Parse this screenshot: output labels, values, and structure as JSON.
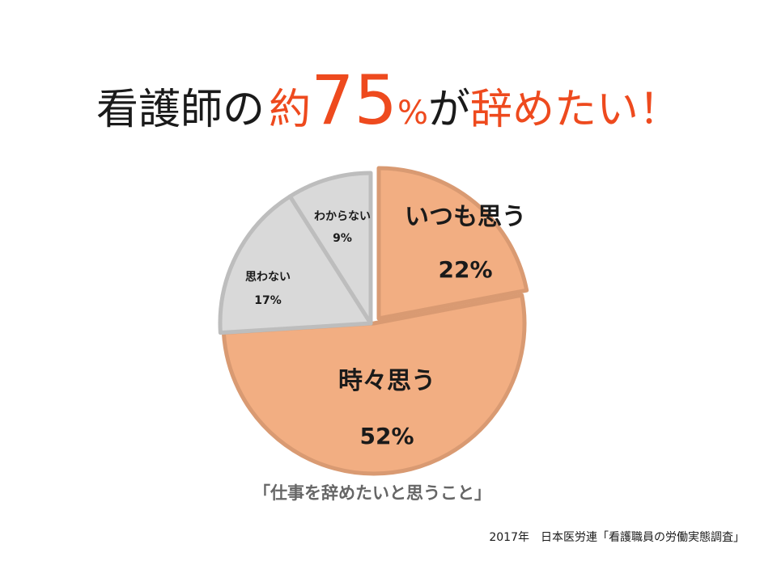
{
  "headline": {
    "part1": "看護師の",
    "part2": "約",
    "part3": "75",
    "part4": "%",
    "part5": "が",
    "part6": "辞めたい！"
  },
  "colors": {
    "accent": "#ee4a1e",
    "orange_fill": "#f2ae82",
    "orange_stroke": "#d99a72",
    "gray_fill": "#d9d9d9",
    "gray_stroke": "#bdbdbd"
  },
  "chart_data": {
    "type": "pie",
    "title": "「仕事を辞めたいと思うこと」",
    "slices": [
      {
        "label": "いつも思う",
        "value": 22,
        "value_label": "22%"
      },
      {
        "label": "時々思う",
        "value": 52,
        "value_label": "52%"
      },
      {
        "label": "思わない",
        "value": 17,
        "value_label": "17%"
      },
      {
        "label": "わからない",
        "value": 9,
        "value_label": "9%"
      }
    ]
  },
  "source": "2017年　日本医労連「看護職員の労働実態調査」"
}
